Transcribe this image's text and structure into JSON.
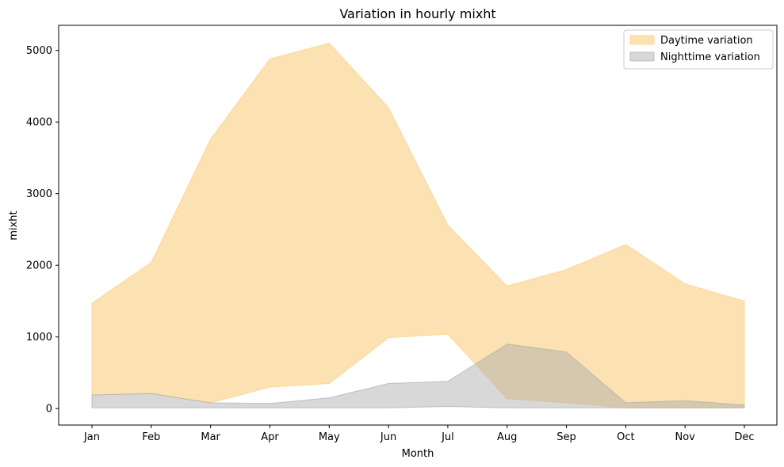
{
  "chart_data": {
    "type": "area",
    "title": "Variation in hourly mixht",
    "xlabel": "Month",
    "ylabel": "mixht",
    "categories": [
      "Jan",
      "Feb",
      "Mar",
      "Apr",
      "May",
      "Jun",
      "Jul",
      "Aug",
      "Sep",
      "Oct",
      "Nov",
      "Dec"
    ],
    "ylim": [
      -230,
      5350
    ],
    "yticks": [
      0,
      1000,
      2000,
      3000,
      4000,
      5000
    ],
    "grid": false,
    "legend_position": "top-right",
    "series": [
      {
        "name": "Daytime variation",
        "color": "#fbd38a",
        "opacity": 0.65,
        "lower": [
          190,
          210,
          80,
          300,
          350,
          990,
          1040,
          140,
          80,
          10,
          10,
          10
        ],
        "upper": [
          1470,
          2040,
          3760,
          4880,
          5100,
          4200,
          2560,
          1710,
          1940,
          2290,
          1740,
          1500
        ]
      },
      {
        "name": "Nighttime variation",
        "color": "#a9a9a9",
        "opacity": 0.45,
        "lower": [
          10,
          10,
          10,
          10,
          10,
          10,
          30,
          10,
          10,
          10,
          10,
          10
        ],
        "upper": [
          190,
          210,
          80,
          70,
          150,
          350,
          380,
          900,
          790,
          80,
          110,
          50
        ]
      }
    ]
  }
}
